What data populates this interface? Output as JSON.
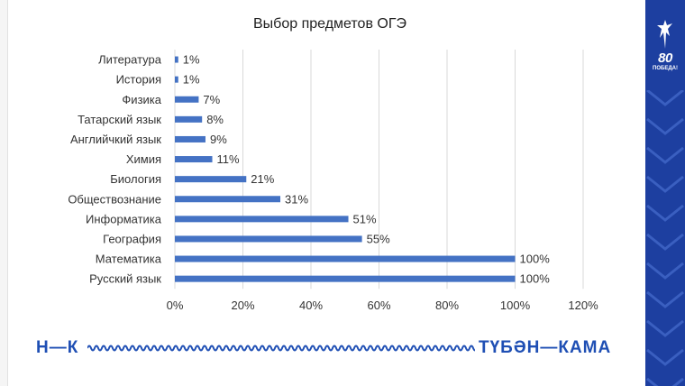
{
  "chart_data": {
    "type": "bar",
    "orientation": "horizontal",
    "title": "Выбор предметов ОГЭ",
    "categories": [
      "Литература",
      "История",
      "Физика",
      "Татарский язык",
      "Английчкий язык",
      "Химия",
      "Биология",
      "Обществознание",
      "Информатика",
      "География",
      "Математика",
      "Русский язык"
    ],
    "values": [
      1,
      1,
      7,
      8,
      9,
      11,
      21,
      31,
      51,
      55,
      100,
      100
    ],
    "value_labels": [
      "1%",
      "1%",
      "7%",
      "8%",
      "9%",
      "11%",
      "21%",
      "31%",
      "51%",
      "55%",
      "100%",
      "100%"
    ],
    "xlim": [
      0,
      120
    ],
    "xticks": [
      0,
      20,
      40,
      60,
      80,
      100,
      120
    ],
    "xtick_labels": [
      "0%",
      "20%",
      "40%",
      "60%",
      "80%",
      "100%",
      "120%"
    ],
    "grid": true,
    "bar_color": "#4472c4"
  },
  "footer": {
    "left_label": "Н—К",
    "right_label": "ТҮБӘН—КАМА",
    "color": "#1f4fb4"
  },
  "badge": {
    "number": "80",
    "word": "ПОБЕДА!",
    "band_color": "#1d3fa0"
  }
}
